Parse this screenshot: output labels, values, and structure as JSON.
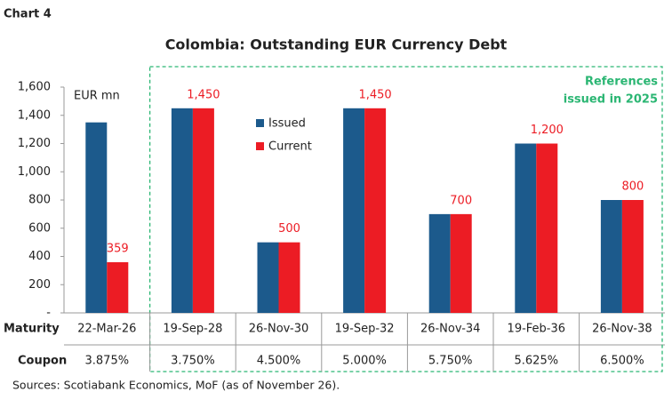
{
  "chart_data": {
    "type": "bar",
    "label": "Chart 4",
    "title": "Colombia: Outstanding EUR Currency Debt",
    "unit_label": "EUR mn",
    "categories": [
      "22-Mar-26",
      "19-Sep-28",
      "26-Nov-30",
      "19-Sep-32",
      "26-Nov-34",
      "19-Feb-36",
      "26-Nov-38"
    ],
    "row_labels": [
      "Maturity",
      "Coupon"
    ],
    "coupons": [
      "3.875%",
      "3.750%",
      "4.500%",
      "5.000%",
      "5.750%",
      "5.625%",
      "6.500%"
    ],
    "series": [
      {
        "name": "Issued",
        "color": "#1c5a8c",
        "values": [
          1350,
          1450,
          500,
          1450,
          700,
          1200,
          800
        ]
      },
      {
        "name": "Current",
        "color": "#ec1c24",
        "values": [
          359,
          1450,
          500,
          1450,
          700,
          1200,
          800
        ],
        "value_labels": [
          "359",
          "1,450",
          "500",
          "1,450",
          "700",
          "1,200",
          "800"
        ]
      }
    ],
    "ylim": [
      0,
      1600
    ],
    "yticks": [
      {
        "value": 0,
        "label": "-"
      },
      200,
      400,
      600,
      800,
      {
        "value": 1000,
        "label": "1,000"
      },
      {
        "value": 1200,
        "label": "1,200"
      },
      {
        "value": 1400,
        "label": "1,400"
      },
      {
        "value": 1600,
        "label": "1,600"
      }
    ],
    "annotation": [
      "References",
      "issued in 2025"
    ],
    "annotation_color": "#2bb673",
    "source": "Sources: Scotiabank Economics, MoF (as of November 26)."
  }
}
